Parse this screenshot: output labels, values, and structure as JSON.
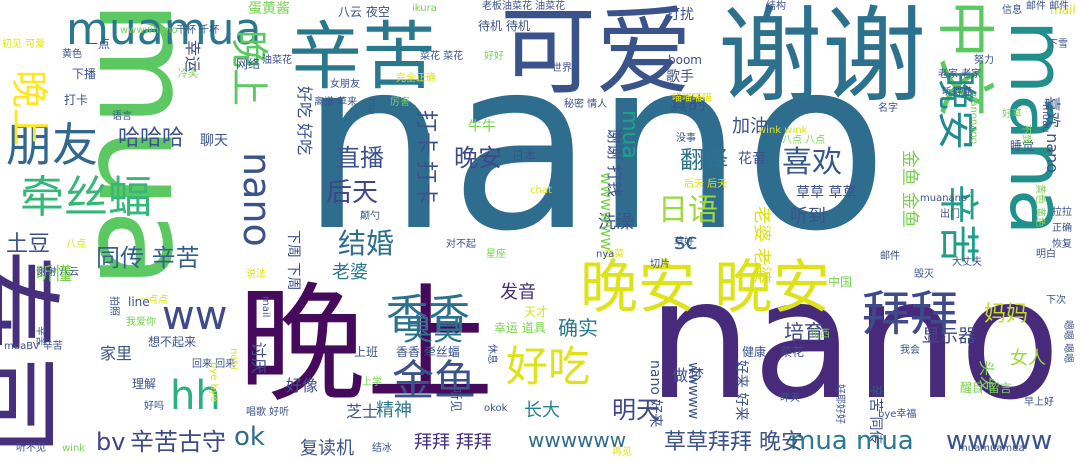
{
  "palette": [
    "#440154",
    "#3b528b",
    "#21918c",
    "#5ec962",
    "#fde725",
    "#31688e",
    "#35b779",
    "#482878",
    "#90d743",
    "#26828e"
  ],
  "words": [
    {
      "text": "nano",
      "color": "#2f6d8e",
      "vertical": false
    },
    {
      "text": "nano",
      "color": "#472a7a",
      "vertical": false
    },
    {
      "text": "mua",
      "color": "#5cc862",
      "vertical": true
    },
    {
      "text": "寿司",
      "color": "#46307e",
      "vertical": true
    },
    {
      "text": "晚上",
      "color": "#450a5c",
      "vertical": false
    },
    {
      "text": "谢谢",
      "color": "#2c728e",
      "vertical": false
    },
    {
      "text": "可爱",
      "color": "#3a538b",
      "vertical": false
    },
    {
      "text": "辛苦",
      "color": "#2a788e",
      "vertical": false
    },
    {
      "text": "mana",
      "color": "#21908d",
      "vertical": true
    },
    {
      "text": "晚安 晚安",
      "color": "#dde318",
      "vertical": false
    },
    {
      "text": "中文",
      "color": "#5cc862",
      "vertical": true
    },
    {
      "text": "拜拜",
      "color": "#3e4a89",
      "vertical": false
    },
    {
      "text": "香香",
      "color": "#2d708e",
      "vertical": false
    },
    {
      "text": "好吃",
      "color": "#dde318",
      "vertical": false
    },
    {
      "text": "金鱼",
      "color": "#3b528b",
      "vertical": false
    },
    {
      "text": "朋友",
      "color": "#31688e",
      "vertical": false
    },
    {
      "text": "牵丝蝠",
      "color": "#35b779",
      "vertical": false
    },
    {
      "text": "muamua",
      "color": "#2a788e",
      "vertical": false
    },
    {
      "text": "晚上",
      "color": "#fde725",
      "vertical": true
    },
    {
      "text": "晚上",
      "color": "#5cc862",
      "vertical": true
    },
    {
      "text": "nano",
      "color": "#3b528b",
      "vertical": true
    },
    {
      "text": "晚安",
      "color": "#238a8d",
      "vertical": true
    },
    {
      "text": "辛苦",
      "color": "#1f9e89",
      "vertical": true
    },
    {
      "text": "hh",
      "color": "#2ab07f",
      "vertical": false
    },
    {
      "text": "ww",
      "color": "#3e4a89",
      "vertical": false
    },
    {
      "text": "同传 辛苦",
      "color": "#355f8d",
      "vertical": false
    },
    {
      "text": "哈哈哈",
      "color": "#3b528b",
      "vertical": false
    },
    {
      "text": "臭臭",
      "color": "#2b748e",
      "vertical": false
    },
    {
      "text": "日语",
      "color": "#9bd93c",
      "vertical": false
    },
    {
      "text": "喜欢",
      "color": "#38588c",
      "vertical": false
    },
    {
      "text": "结婚",
      "color": "#2d708e",
      "vertical": false
    },
    {
      "text": "后天",
      "color": "#404688",
      "vertical": false
    },
    {
      "text": "直播",
      "color": "#3b528b",
      "vertical": false
    },
    {
      "text": "晚安",
      "color": "#3e4989",
      "vertical": false
    },
    {
      "text": "翻译",
      "color": "#2c728e",
      "vertical": false
    },
    {
      "text": "土豆",
      "color": "#3b528b",
      "vertical": false
    },
    {
      "text": "ok",
      "color": "#2f6c8e",
      "vertical": false
    },
    {
      "text": "bv",
      "color": "#414487",
      "vertical": false
    },
    {
      "text": "辛苦古守",
      "color": "#3e4989",
      "vertical": false
    },
    {
      "text": "mua mua",
      "color": "#287c8e",
      "vertical": false
    },
    {
      "text": "wwwww",
      "color": "#3b528b",
      "vertical": false
    },
    {
      "text": "明天",
      "color": "#3f4788",
      "vertical": false
    },
    {
      "text": "草草拜拜 晚安",
      "color": "#3b528b",
      "vertical": false
    },
    {
      "text": "wwwwww",
      "color": "#2f6c8e",
      "vertical": false
    },
    {
      "text": "拜拜 拜拜",
      "color": "#46307e",
      "vertical": false
    },
    {
      "text": "复读机",
      "color": "#3b528b",
      "vertical": false
    },
    {
      "text": "精神",
      "color": "#2a788e",
      "vertical": false
    },
    {
      "text": "长大",
      "color": "#26828e",
      "vertical": false
    },
    {
      "text": "确实",
      "color": "#2a788e",
      "vertical": false
    },
    {
      "text": "培育",
      "color": "#3f4788",
      "vertical": false
    },
    {
      "text": "显示器",
      "color": "#404688",
      "vertical": false
    },
    {
      "text": "妈妈",
      "color": "#c2df23",
      "vertical": false
    },
    {
      "text": "发音",
      "color": "#472c7a",
      "vertical": false
    },
    {
      "text": "洗澡",
      "color": "#3b528b",
      "vertical": false
    },
    {
      "text": "老婆",
      "color": "#2a788e",
      "vertical": false
    },
    {
      "text": "sc",
      "color": "#32658e",
      "vertical": false
    },
    {
      "text": "听到",
      "color": "#3b528b",
      "vertical": false
    },
    {
      "text": "真的",
      "color": "#3b528b",
      "vertical": false
    },
    {
      "text": "打卡 打卡",
      "color": "#3b528b",
      "vertical": true
    },
    {
      "text": "mua",
      "color": "#1fa187",
      "vertical": true
    },
    {
      "text": "女人",
      "color": "#9bd93c",
      "vertical": false
    },
    {
      "text": "好像",
      "color": "#3b528b",
      "vertical": false
    },
    {
      "text": "芝士",
      "color": "#3b528b",
      "vertical": false
    },
    {
      "text": "做梦",
      "color": "#3b528b",
      "vertical": false
    },
    {
      "text": "加油",
      "color": "#3b528b",
      "vertical": false
    },
    {
      "text": "歌手",
      "color": "#3b528b",
      "vertical": false
    },
    {
      "text": "打扰",
      "color": "#3b528b",
      "vertical": false
    },
    {
      "text": "聊天",
      "color": "#3b528b",
      "vertical": false
    },
    {
      "text": "听懂",
      "color": "#7ad151",
      "vertical": false
    },
    {
      "text": "家里",
      "color": "#3b528b",
      "vertical": false
    },
    {
      "text": "蛋黄酱",
      "color": "#7ad151",
      "vertical": false
    },
    {
      "text": "牛牛",
      "color": "#7ad151",
      "vertical": false
    },
    {
      "text": "wwwwnano",
      "color": "#7ad151",
      "vertical": false
    },
    {
      "text": "mail",
      "color": "#dde318",
      "vertical": false
    },
    {
      "text": "八云 夜空",
      "color": "#3b528b",
      "vertical": false
    },
    {
      "text": "ikura",
      "color": "#7ad151",
      "vertical": false
    },
    {
      "text": "老板油菜花 油菜花",
      "color": "#3b528b",
      "vertical": false
    },
    {
      "text": "待机 待机",
      "color": "#3b528b",
      "vertical": false
    },
    {
      "text": "结构",
      "color": "#3b528b",
      "vertical": false
    },
    {
      "text": "信息",
      "color": "#3b528b",
      "vertical": false
    },
    {
      "text": "邮件 邮件",
      "color": "#3b528b",
      "vertical": false
    },
    {
      "text": "下雪",
      "color": "#3b528b",
      "vertical": false
    },
    {
      "text": "初见 可爱",
      "color": "#dde318",
      "vertical": false
    },
    {
      "text": "黄色",
      "color": "#3b528b",
      "vertical": false
    },
    {
      "text": "一点",
      "color": "#3b528b",
      "vertical": false
    },
    {
      "text": "下播",
      "color": "#3b528b",
      "vertical": false
    },
    {
      "text": "打卡",
      "color": "#3b528b",
      "vertical": false
    },
    {
      "text": "语言",
      "color": "#3b528b",
      "vertical": false
    },
    {
      "text": "冷笑",
      "color": "#7ad151",
      "vertical": false
    },
    {
      "text": "网络",
      "color": "#3b528b",
      "vertical": false
    },
    {
      "text": "油菜花",
      "color": "#3b528b",
      "vertical": false
    },
    {
      "text": "菜花 菜花",
      "color": "#3b528b",
      "vertical": false
    },
    {
      "text": "好好",
      "color": "#7ad151",
      "vertical": false
    },
    {
      "text": "完全正确",
      "color": "#dde318",
      "vertical": false
    },
    {
      "text": "boom",
      "color": "#3b528b",
      "vertical": false
    },
    {
      "text": "世界",
      "color": "#3b528b",
      "vertical": false
    },
    {
      "text": "女朋友",
      "color": "#3b528b",
      "vertical": false
    },
    {
      "text": "离谱 草来",
      "color": "#3b528b",
      "vertical": false
    },
    {
      "text": "厉害",
      "color": "#7ad151",
      "vertical": false
    },
    {
      "text": "秘密 情人",
      "color": "#3b528b",
      "vertical": false
    },
    {
      "text": "喵喵喵喵",
      "color": "#dde318",
      "vertical": false
    },
    {
      "text": "老家 老家",
      "color": "#3b528b",
      "vertical": false
    },
    {
      "text": "努力",
      "color": "#3b528b",
      "vertical": false
    },
    {
      "text": "听得懂",
      "color": "#3b528b",
      "vertical": false
    },
    {
      "text": "名字",
      "color": "#3b528b",
      "vertical": false
    },
    {
      "text": "好草",
      "color": "#7ad151",
      "vertical": false
    },
    {
      "text": "没事",
      "color": "#3b528b",
      "vertical": false
    },
    {
      "text": "八点 八点",
      "color": "#7ad151",
      "vertical": false
    },
    {
      "text": "wink wink",
      "color": "#dde318",
      "vertical": false
    },
    {
      "text": "日本",
      "color": "#3b528b",
      "vertical": false
    },
    {
      "text": "花音",
      "color": "#3b528b",
      "vertical": false
    },
    {
      "text": "睡觉",
      "color": "#3b528b",
      "vertical": false
    },
    {
      "text": "草草 草草",
      "color": "#3b528b",
      "vertical": false
    },
    {
      "text": "后天 后天",
      "color": "#dde318",
      "vertical": false
    },
    {
      "text": "muanano",
      "color": "#3b528b",
      "vertical": false
    },
    {
      "text": "出门",
      "color": "#3b528b",
      "vertical": false
    },
    {
      "text": "拉拉",
      "color": "#3b528b",
      "vertical": false
    },
    {
      "text": "正确",
      "color": "#3b528b",
      "vertical": false
    },
    {
      "text": "恢复",
      "color": "#3b528b",
      "vertical": false
    },
    {
      "text": "明白",
      "color": "#3b528b",
      "vertical": false
    },
    {
      "text": "大丈夫",
      "color": "#3b528b",
      "vertical": false
    },
    {
      "text": "毁灭",
      "color": "#3b528b",
      "vertical": false
    },
    {
      "text": "邮件",
      "color": "#3b528b",
      "vertical": false
    },
    {
      "text": "中国",
      "color": "#7ad151",
      "vertical": false
    },
    {
      "text": "下次",
      "color": "#3b528b",
      "vertical": false
    },
    {
      "text": "谢谢 八云",
      "color": "#3b528b",
      "vertical": false
    },
    {
      "text": "说法",
      "color": "#dde318",
      "vertical": false
    },
    {
      "text": "line",
      "color": "#3b528b",
      "vertical": false
    },
    {
      "text": "一点点",
      "color": "#dde318",
      "vertical": false
    },
    {
      "text": "我爱你",
      "color": "#7ad151",
      "vertical": false
    },
    {
      "text": "天才",
      "color": "#dde318",
      "vertical": false
    },
    {
      "text": "幸运 道具",
      "color": "#7ad151",
      "vertical": false
    },
    {
      "text": "东西",
      "color": "#7ad151",
      "vertical": false
    },
    {
      "text": "muaBV 辛苦",
      "color": "#3b528b",
      "vertical": false
    },
    {
      "text": "想不起来",
      "color": "#3b528b",
      "vertical": false
    },
    {
      "text": "上班",
      "color": "#3b528b",
      "vertical": false
    },
    {
      "text": "香香 牵丝蝠",
      "color": "#3b528b",
      "vertical": false
    },
    {
      "text": "我会",
      "color": "#3b528b",
      "vertical": false
    },
    {
      "text": "健康",
      "color": "#3b528b",
      "vertical": false
    },
    {
      "text": "菜花",
      "color": "#3b528b",
      "vertical": false
    },
    {
      "text": "回来 回来",
      "color": "#3b528b",
      "vertical": false
    },
    {
      "text": "理解",
      "color": "#3b528b",
      "vertical": false
    },
    {
      "text": "好吗",
      "color": "#3b528b",
      "vertical": false
    },
    {
      "text": "上学",
      "color": "#7ad151",
      "vertical": false
    },
    {
      "text": "唱歌 好听",
      "color": "#3b528b",
      "vertical": false
    },
    {
      "text": "昨天",
      "color": "#3b528b",
      "vertical": false
    },
    {
      "text": "醒目 留言",
      "color": "#7ad151",
      "vertical": false
    },
    {
      "text": "早上好",
      "color": "#3b528b",
      "vertical": false
    },
    {
      "text": "听不见",
      "color": "#3b528b",
      "vertical": false
    },
    {
      "text": "wink",
      "color": "#7ad151",
      "vertical": false
    },
    {
      "text": "结冰",
      "color": "#3b528b",
      "vertical": false
    },
    {
      "text": "再见",
      "color": "#dde318",
      "vertical": false
    },
    {
      "text": "okok",
      "color": "#3b528b",
      "vertical": false
    },
    {
      "text": "bye幸福",
      "color": "#3b528b",
      "vertical": false
    },
    {
      "text": "muamuamua",
      "color": "#3b528b",
      "vertical": false
    },
    {
      "text": "千杯 千杯",
      "color": "#3b528b",
      "vertical": false
    },
    {
      "text": "八点",
      "color": "#dde318",
      "vertical": false
    },
    {
      "text": "星座",
      "color": "#7ad151",
      "vertical": false
    },
    {
      "text": "白菜",
      "color": "#dde318",
      "vertical": false
    },
    {
      "text": "切片",
      "color": "#3b528b",
      "vertical": false
    },
    {
      "text": "nya",
      "color": "#3b528b",
      "vertical": false
    },
    {
      "text": "对不起",
      "color": "#3b528b",
      "vertical": false
    },
    {
      "text": "颠勺",
      "color": "#3b528b",
      "vertical": false
    },
    {
      "text": "草好",
      "color": "#3b528b",
      "vertical": false
    },
    {
      "text": "chat",
      "color": "#dde318",
      "vertical": false
    },
    {
      "text": "老婆 老婆",
      "color": "#dde318",
      "vertical": true
    },
    {
      "text": "金鱼 金鱼",
      "color": "#7ad151",
      "vertical": true
    },
    {
      "text": "谢谢 打钱",
      "color": "#3b528b",
      "vertical": true
    },
    {
      "text": "好吃 好吃",
      "color": "#3b528b",
      "vertical": true
    },
    {
      "text": "喜欢 nano",
      "color": "#3b528b",
      "vertical": true
    },
    {
      "text": "幸运",
      "color": "#3b528b",
      "vertical": true
    },
    {
      "text": "辛苦 同传",
      "color": "#3b528b",
      "vertical": true
    },
    {
      "text": "好来 好来",
      "color": "#3b528b",
      "vertical": true
    },
    {
      "text": "nano 好来",
      "color": "#3b528b",
      "vertical": true
    },
    {
      "text": "头发",
      "color": "#7ad151",
      "vertical": true
    },
    {
      "text": "下周 下周",
      "color": "#3b528b",
      "vertical": true
    },
    {
      "text": "讨厌",
      "color": "#3b528b",
      "vertical": true
    },
    {
      "text": "wwwww",
      "color": "#3b528b",
      "vertical": true
    },
    {
      "text": "wwwwww",
      "color": "#7ad151",
      "vertical": true
    },
    {
      "text": "听见",
      "color": "#3b528b",
      "vertical": true
    },
    {
      "text": "嗯嗯 嗯嗯",
      "color": "#3b528b",
      "vertical": true
    },
    {
      "text": "黄色 黄色",
      "color": "#7ad151",
      "vertical": true
    },
    {
      "text": "bye bye",
      "color": "#dde318",
      "vertical": true
    },
    {
      "text": "nabi",
      "color": "#dde318",
      "vertical": true
    },
    {
      "text": "mail",
      "color": "#3b528b",
      "vertical": true
    },
    {
      "text": "niu",
      "color": "#3b528b",
      "vertical": true
    },
    {
      "text": "nanonano",
      "color": "#7ad151",
      "vertical": true
    },
    {
      "text": "好耶好好",
      "color": "#3b528b",
      "vertical": true
    },
    {
      "text": "muau",
      "color": "#3b528b",
      "vertical": true
    },
    {
      "text": "不到",
      "color": "#7ad151",
      "vertical": true
    },
    {
      "text": "拍照",
      "color": "#3b528b",
      "vertical": true
    },
    {
      "text": "休息",
      "color": "#3b528b",
      "vertical": true
    },
    {
      "text": "辛苦",
      "color": "#3b528b",
      "vertical": true
    }
  ]
}
